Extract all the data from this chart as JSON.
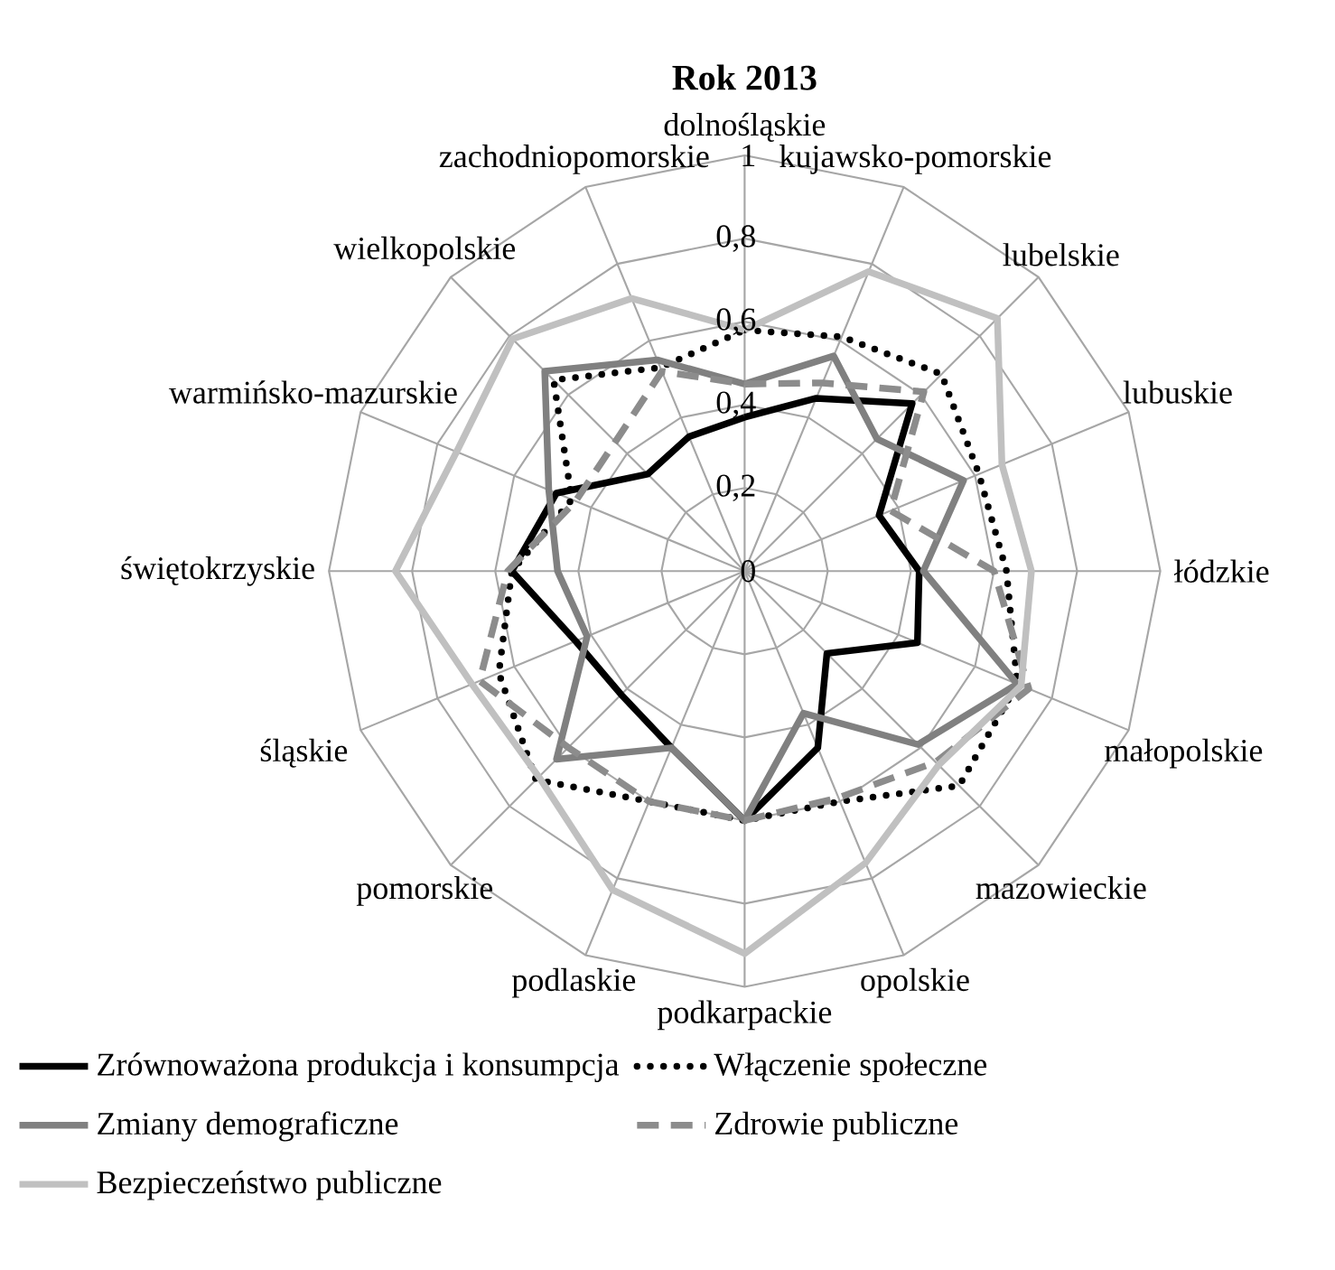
{
  "chart_data": {
    "type": "radar",
    "title": "Rok 2013",
    "categories": [
      "dolnośląskie",
      "kujawsko-pomorskie",
      "lubelskie",
      "lubuskie",
      "łódzkie",
      "małopolskie",
      "mazowieckie",
      "opolskie",
      "podkarpackie",
      "podlaskie",
      "pomorskie",
      "śląskie",
      "świętokrzyskie",
      "warmińsko-mazurskie",
      "wielkopolskie",
      "zachodniopomorskie"
    ],
    "series": [
      {
        "name": "Zrównoważona produkcja i konsumpcja",
        "color": "#000000",
        "line_style": "solid",
        "values": [
          0.37,
          0.45,
          0.57,
          0.35,
          0.42,
          0.45,
          0.28,
          0.46,
          0.6,
          0.46,
          0.42,
          0.44,
          0.56,
          0.49,
          0.33,
          0.35
        ]
      },
      {
        "name": "Włączenie społeczne",
        "color": "#000000",
        "line_style": "dotted",
        "values": [
          0.58,
          0.61,
          0.67,
          0.61,
          0.63,
          0.71,
          0.73,
          0.6,
          0.6,
          0.6,
          0.71,
          0.64,
          0.56,
          0.45,
          0.65,
          0.53
        ]
      },
      {
        "name": "Zmiany demograficzne",
        "color": "#808080",
        "line_style": "solid",
        "values": [
          0.45,
          0.56,
          0.45,
          0.57,
          0.43,
          0.71,
          0.59,
          0.37,
          0.6,
          0.46,
          0.64,
          0.41,
          0.45,
          0.51,
          0.68,
          0.55
        ]
      },
      {
        "name": "Zdrowie publiczne",
        "color": "#8c8c8c",
        "line_style": "dashed",
        "values": [
          0.45,
          0.49,
          0.61,
          0.38,
          0.6,
          0.74,
          0.65,
          0.59,
          0.6,
          0.6,
          0.6,
          0.69,
          0.57,
          0.44,
          0.44,
          0.52
        ]
      },
      {
        "name": "Bezpieczeństwo publiczne",
        "color": "#c0c0c0",
        "line_style": "solid",
        "values": [
          0.58,
          0.78,
          0.86,
          0.67,
          0.69,
          0.72,
          0.66,
          0.76,
          0.92,
          0.83,
          0.7,
          0.71,
          0.84,
          0.75,
          0.79,
          0.71
        ]
      }
    ],
    "ylim": [
      0,
      1
    ],
    "yticks": [
      {
        "value": 0,
        "label": "0"
      },
      {
        "value": 0.2,
        "label": "0,2"
      },
      {
        "value": 0.4,
        "label": "0,4"
      },
      {
        "value": 0.6,
        "label": "0,6"
      },
      {
        "value": 0.8,
        "label": "0,8"
      },
      {
        "value": 1,
        "label": "1"
      }
    ],
    "grid": true,
    "legend": "bottom"
  }
}
